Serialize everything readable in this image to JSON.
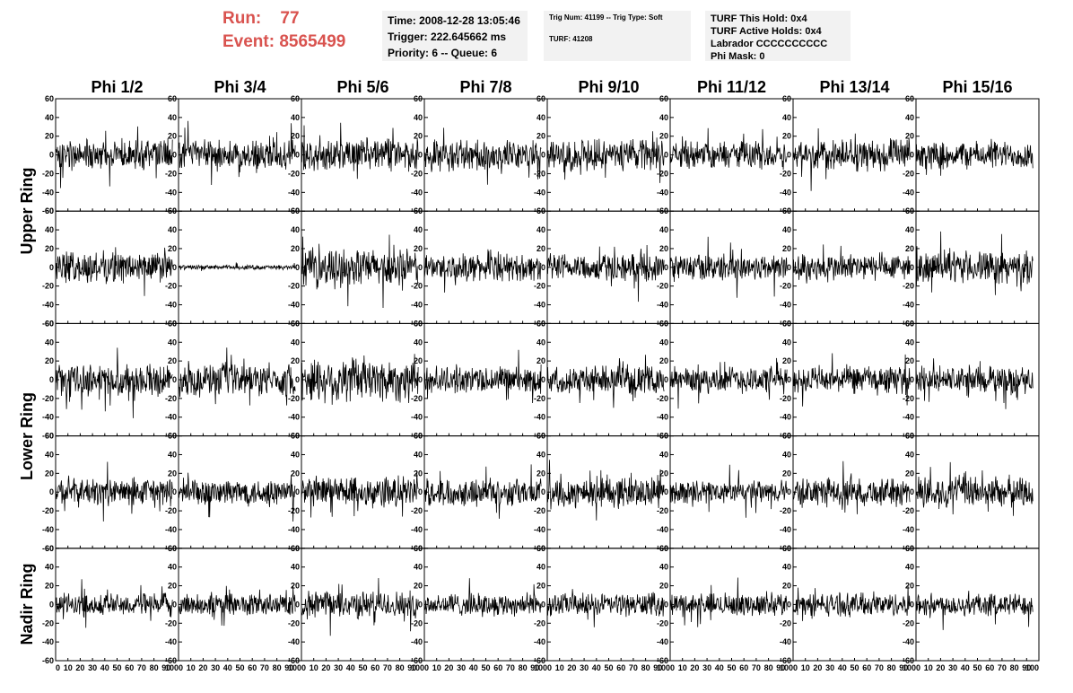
{
  "run": {
    "run_label": "Run:",
    "run_value": "77",
    "event_label": "Event:",
    "event_value": "8565499"
  },
  "time_box": {
    "lines": [
      "Time: 2008-12-28 13:05:46",
      "Trigger: 222.645662 ms",
      "Priority: 6 -- Queue: 6"
    ]
  },
  "trig_box": {
    "lines": [
      "Trig Num: 41199 -- Trig Type: Soft",
      "",
      "TURF: 41208"
    ]
  },
  "turf_box": {
    "lines": [
      "TURF This Hold: 0x4",
      "TURF Active Holds: 0x4",
      "Labrador CCCCCCCCCC",
      "Phi Mask: 0"
    ]
  },
  "columns": [
    "Phi 1/2",
    "Phi 3/4",
    "Phi 5/6",
    "Phi 7/8",
    "Phi 9/10",
    "Phi 11/12",
    "Phi 13/14",
    "Phi 15/16"
  ],
  "row_groups": [
    {
      "label": "Upper Ring",
      "rows": [
        0,
        1
      ]
    },
    {
      "label": "Lower Ring",
      "rows": [
        2,
        3
      ]
    },
    {
      "label": "Nadir Ring",
      "rows": [
        4
      ]
    }
  ],
  "chart_data": {
    "type": "line",
    "title": "",
    "xlabel": "",
    "ylabel": "",
    "xlim": [
      0,
      100
    ],
    "ylim": [
      -60,
      60
    ],
    "x_ticks": [
      0,
      10,
      20,
      30,
      40,
      50,
      60,
      70,
      80,
      90,
      100
    ],
    "y_ticks": [
      -60,
      -40,
      -20,
      0,
      20,
      40,
      60
    ],
    "n_rows": 5,
    "n_cols": 8,
    "samples_per_trace": 260,
    "amplitude_rows_by_col": [
      [
        14,
        14,
        14,
        14,
        14,
        12,
        14,
        12
      ],
      [
        14,
        2,
        16,
        12,
        12,
        12,
        12,
        14
      ],
      [
        14,
        14,
        20,
        12,
        12,
        12,
        12,
        12
      ],
      [
        12,
        12,
        14,
        12,
        14,
        10,
        12,
        14
      ],
      [
        10,
        10,
        12,
        10,
        10,
        10,
        10,
        10
      ]
    ],
    "grid": false
  }
}
